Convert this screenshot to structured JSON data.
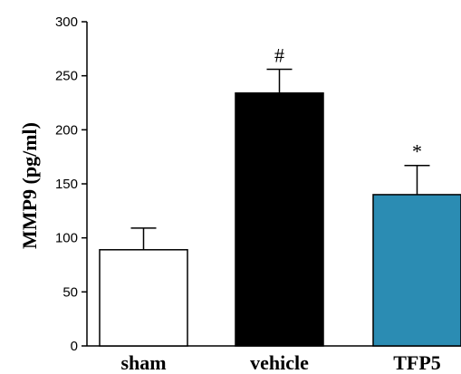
{
  "chart_data": {
    "type": "bar",
    "categories": [
      "sham",
      "vehicle",
      "TFP5"
    ],
    "values": [
      89,
      234,
      140
    ],
    "errors": [
      20,
      22,
      27
    ],
    "annotations": [
      "",
      "#",
      "*"
    ],
    "colors": [
      "#ffffff",
      "#000000",
      "#2b8cb3"
    ],
    "xlabel": "",
    "ylabel": "MMP9 (pg/ml)",
    "ylim": [
      0,
      300
    ],
    "yticks": [
      0,
      50,
      100,
      150,
      200,
      250,
      300
    ],
    "grid": false,
    "legend": "none"
  }
}
